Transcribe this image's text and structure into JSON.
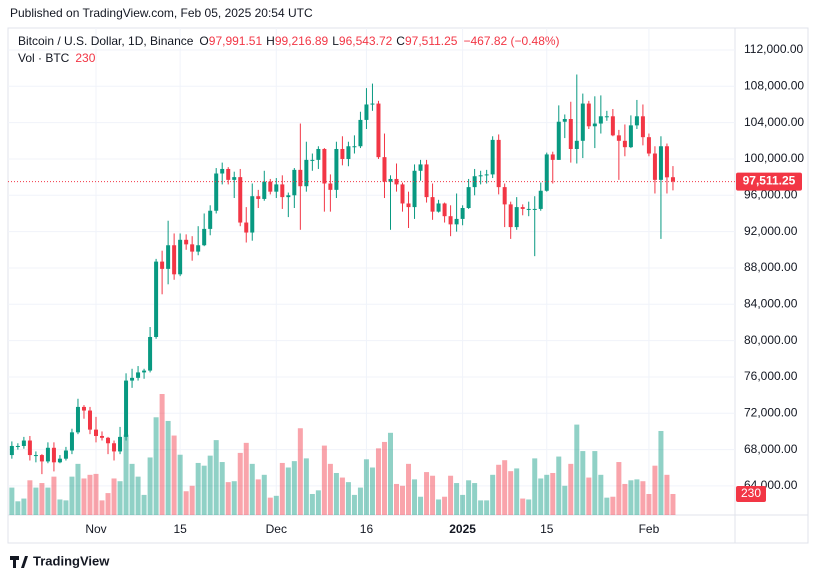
{
  "chart_data": {
    "type": "candlestick",
    "published": "Published on TradingView.com, Feb 05, 2025 20:54 UTC",
    "title": "Bitcoin / U.S. Dollar, 1D, Binance",
    "ohlc_legend": [
      {
        "key": "O",
        "label": "97,991.51"
      },
      {
        "key": "H",
        "label": "99,216.89"
      },
      {
        "key": "L",
        "label": "96,543.72"
      },
      {
        "key": "C",
        "label": "97,511.25"
      }
    ],
    "change_label": "−467.82 (−0.48%)",
    "volume_title": "Vol · BTC",
    "last_price_label": "97,511.25",
    "footer": "TradingView",
    "up_color": "#089981",
    "down_color": "#f23645",
    "open": [
      67400,
      68400,
      68400,
      69000,
      67400,
      67400,
      66700,
      68200,
      66600,
      67000,
      67900,
      69900,
      72700,
      72300,
      70200,
      69500,
      69300,
      68700,
      67800,
      69400,
      75600,
      75900,
      76500,
      76700,
      80400,
      88700,
      87900,
      90500,
      87300,
      91100,
      90600,
      89800,
      90500,
      92300,
      94300,
      98400,
      98900,
      97700,
      98000,
      93000,
      91900,
      95900,
      95600,
      97500,
      96400,
      97200,
      95800,
      96000,
      98800,
      97000,
      99900,
      99900,
      101100,
      97300,
      96600,
      101100,
      100000,
      101400,
      101400,
      104300,
      106000,
      106100,
      100200,
      97500,
      97800,
      97200,
      95100,
      94700,
      98700,
      99400,
      95800,
      94200,
      95100,
      93700,
      92800,
      93400,
      94600,
      96900,
      98100,
      98200,
      98300,
      102100,
      96900,
      95000,
      92500,
      94700,
      94500,
      94500,
      94500,
      96500,
      100500,
      99900,
      104100,
      104400,
      101100,
      102000,
      106100,
      103600,
      103900,
      104700,
      104700,
      102600,
      102000,
      101300,
      103700,
      104700,
      102400,
      100600,
      97700,
      101400,
      97991.51
    ],
    "high": [
      68900,
      68700,
      69400,
      69500,
      67800,
      67500,
      68800,
      68800,
      67400,
      68300,
      70300,
      73600,
      72900,
      72700,
      71600,
      70000,
      69400,
      69000,
      70500,
      76400,
      76900,
      77200,
      76900,
      81500,
      89000,
      89900,
      93200,
      91800,
      91800,
      91700,
      91500,
      92600,
      94000,
      94900,
      99000,
      99600,
      99100,
      98600,
      98900,
      94700,
      97300,
      96600,
      98700,
      97800,
      97900,
      98200,
      96300,
      99000,
      103900,
      101900,
      100600,
      101400,
      101200,
      98300,
      101900,
      102500,
      101900,
      102600,
      105200,
      107800,
      108300,
      106400,
      102800,
      98200,
      99500,
      97400,
      96400,
      99400,
      99900,
      99900,
      97300,
      95500,
      95200,
      94900,
      96200,
      94900,
      97800,
      98900,
      98700,
      98800,
      102500,
      102700,
      97300,
      95300,
      95800,
      95000,
      95300,
      95900,
      97400,
      100700,
      100800,
      105900,
      104900,
      106300,
      109300,
      107200,
      106400,
      106900,
      107000,
      105300,
      105500,
      103200,
      103800,
      104800,
      106500,
      106000,
      102800,
      101400,
      102500,
      101700,
      99216.89
    ],
    "low": [
      67000,
      68000,
      68100,
      66800,
      66600,
      65300,
      66500,
      65600,
      66500,
      66800,
      67500,
      69700,
      71400,
      69700,
      68800,
      69000,
      67500,
      66800,
      67500,
      69000,
      74800,
      75600,
      75800,
      76500,
      80200,
      85100,
      86200,
      86700,
      87100,
      90000,
      88800,
      89400,
      90400,
      91600,
      94000,
      97200,
      97200,
      95700,
      92600,
      90800,
      91000,
      94600,
      95400,
      96100,
      95700,
      94500,
      93600,
      94600,
      92200,
      96400,
      98700,
      98900,
      94200,
      94200,
      95700,
      99300,
      99200,
      100600,
      101200,
      103300,
      105300,
      100000,
      95700,
      92200,
      96400,
      94200,
      92400,
      93400,
      97600,
      95200,
      93300,
      94100,
      93000,
      91500,
      92000,
      92700,
      94500,
      96000,
      97200,
      97300,
      97900,
      96100,
      92500,
      91200,
      92200,
      93800,
      93700,
      89300,
      94300,
      96400,
      97300,
      99900,
      102300,
      99600,
      99500,
      100100,
      103300,
      101200,
      102800,
      104200,
      102500,
      97700,
      100300,
      101200,
      103300,
      101500,
      100300,
      96200,
      91200,
      96200,
      96543.72
    ],
    "close": [
      68400,
      68400,
      69000,
      67400,
      67400,
      66700,
      68200,
      66600,
      67000,
      67900,
      69900,
      72700,
      72300,
      70200,
      69500,
      69300,
      68700,
      67800,
      69400,
      75600,
      75900,
      76500,
      76700,
      80400,
      88700,
      87900,
      90500,
      87300,
      91100,
      90600,
      89800,
      90500,
      92300,
      94300,
      98400,
      98900,
      97700,
      98000,
      93000,
      91900,
      95900,
      95600,
      97500,
      96400,
      97200,
      95800,
      96000,
      98800,
      97000,
      99900,
      99900,
      101100,
      97300,
      96600,
      101100,
      100000,
      101400,
      101400,
      104300,
      106000,
      106100,
      100200,
      97500,
      97800,
      97200,
      95100,
      94700,
      98700,
      99400,
      95800,
      94200,
      95100,
      93700,
      92800,
      93400,
      94600,
      96900,
      98100,
      98200,
      98300,
      102100,
      96900,
      95000,
      92500,
      94700,
      94500,
      94500,
      94500,
      96500,
      100500,
      99900,
      104100,
      104400,
      101100,
      102000,
      106100,
      103600,
      103900,
      104700,
      104700,
      102600,
      102000,
      101300,
      103700,
      104700,
      102400,
      100600,
      97700,
      101400,
      97979.07,
      97511.25
    ],
    "volume": [
      300,
      150,
      180,
      380,
      300,
      350,
      300,
      420,
      170,
      160,
      420,
      560,
      400,
      440,
      450,
      160,
      240,
      400,
      370,
      880,
      560,
      420,
      220,
      630,
      1070,
      1325,
      1030,
      870,
      660,
      260,
      320,
      570,
      540,
      650,
      820,
      580,
      360,
      370,
      680,
      790,
      560,
      390,
      440,
      190,
      210,
      570,
      520,
      590,
      950,
      620,
      230,
      270,
      760,
      560,
      460,
      410,
      360,
      220,
      300,
      610,
      520,
      730,
      800,
      900,
      340,
      320,
      560,
      390,
      200,
      470,
      430,
      170,
      200,
      430,
      350,
      220,
      380,
      350,
      160,
      160,
      440,
      550,
      600,
      480,
      510,
      180,
      170,
      620,
      400,
      440,
      460,
      640,
      320,
      560,
      990,
      700,
      410,
      700,
      440,
      190,
      200,
      580,
      340,
      380,
      390,
      370,
      230,
      540,
      920,
      440,
      230
    ],
    "ylim": [
      60800,
      114420
    ],
    "yticks": [
      {
        "value": 64000,
        "label": "64,000.00"
      },
      {
        "value": 68000,
        "label": "68,000.00"
      },
      {
        "value": 72000,
        "label": "72,000.00"
      },
      {
        "value": 76000,
        "label": "76,000.00"
      },
      {
        "value": 80000,
        "label": "80,000.00"
      },
      {
        "value": 84000,
        "label": "84,000.00"
      },
      {
        "value": 88000,
        "label": "88,000.00"
      },
      {
        "value": 92000,
        "label": "92,000.00"
      },
      {
        "value": 96000,
        "label": "96,000.00"
      },
      {
        "value": 100000,
        "label": "100,000.00"
      },
      {
        "value": 104000,
        "label": "104,000.00"
      },
      {
        "value": 108000,
        "label": "108,000.00"
      },
      {
        "value": 112000,
        "label": "112,000.00"
      }
    ],
    "xticks": [
      {
        "value": 14,
        "label": "Nov"
      },
      {
        "value": 28,
        "label": "15"
      },
      {
        "value": 44,
        "label": "Dec"
      },
      {
        "value": 59,
        "label": "16"
      },
      {
        "value": 75,
        "label": "2025"
      },
      {
        "value": 89,
        "label": "15"
      },
      {
        "value": 106,
        "label": "Feb"
      }
    ],
    "grid": true
  }
}
